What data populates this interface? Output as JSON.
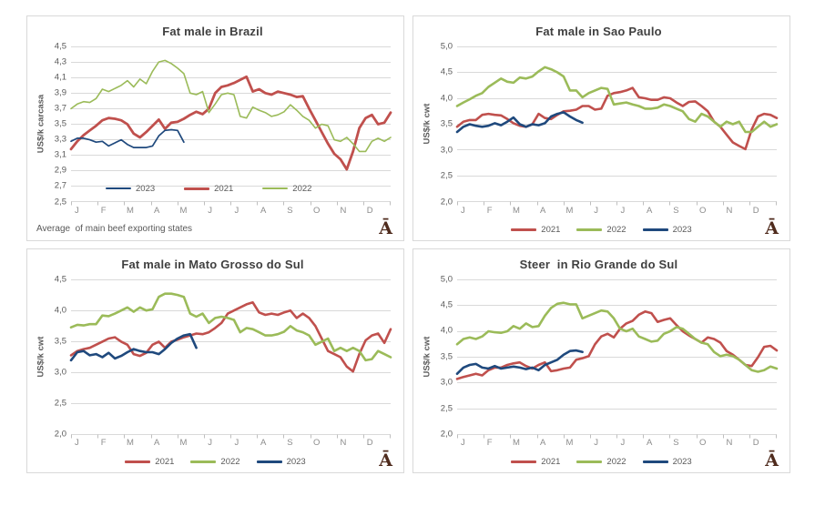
{
  "logo": "Ā",
  "palette": {
    "grid": "#d9d9d9",
    "axis": "#bfbfbf",
    "red_2021": "#c0504d",
    "green_2022": "#9bbb59",
    "blue_2023": "#1f497d",
    "title_text": "#404040",
    "axis_text": "#595959",
    "month_text": "#8c8c8c",
    "logo_brown": "#4f2b1d",
    "panel_border": "#d9d9d9"
  },
  "chart_data": [
    {
      "type": "line",
      "title": "Fat male in Brazil",
      "ylabel": "US$/k carcasa",
      "ylim": [
        2.5,
        4.5
      ],
      "grid": true,
      "y_ticks": [
        "4,5",
        "4,3",
        "4,1",
        "3,9",
        "3,7",
        "3,5",
        "3,3",
        "3,1",
        "2,9",
        "2,7",
        "2,5"
      ],
      "x_labels": [
        "J",
        "F",
        "M",
        "A",
        "M",
        "J",
        "J",
        "A",
        "S",
        "O",
        "N",
        "D"
      ],
      "footnote": "Average  of main beef exporting states",
      "legend_position": "inside-bottom-left",
      "legend_order": [
        2,
        0,
        1
      ],
      "series": [
        {
          "name": "2021",
          "color": "#c0504d",
          "stroke_width": 2.8,
          "values": [
            3.18,
            3.28,
            3.36,
            3.42,
            3.48,
            3.55,
            3.58,
            3.57,
            3.55,
            3.5,
            3.38,
            3.33,
            3.4,
            3.48,
            3.56,
            3.44,
            3.52,
            3.53,
            3.57,
            3.62,
            3.66,
            3.63,
            3.7,
            3.9,
            3.98,
            4.0,
            4.03,
            4.07,
            4.11,
            3.92,
            3.95,
            3.9,
            3.88,
            3.92,
            3.9,
            3.88,
            3.85,
            3.86,
            3.7,
            3.55,
            3.4,
            3.25,
            3.12,
            3.05,
            2.92,
            3.15,
            3.45,
            3.58,
            3.62,
            3.5,
            3.52,
            3.65
          ]
        },
        {
          "name": "2022",
          "color": "#9bbb59",
          "stroke_width": 1.6,
          "values": [
            3.7,
            3.76,
            3.79,
            3.78,
            3.83,
            3.95,
            3.92,
            3.96,
            4.0,
            4.06,
            3.98,
            4.08,
            4.02,
            4.18,
            4.3,
            4.32,
            4.28,
            4.22,
            4.15,
            3.9,
            3.88,
            3.92,
            3.65,
            3.76,
            3.88,
            3.9,
            3.88,
            3.6,
            3.58,
            3.72,
            3.68,
            3.65,
            3.6,
            3.62,
            3.66,
            3.75,
            3.68,
            3.6,
            3.55,
            3.45,
            3.5,
            3.48,
            3.3,
            3.28,
            3.33,
            3.25,
            3.15,
            3.15,
            3.28,
            3.32,
            3.28,
            3.33
          ]
        },
        {
          "name": "2023",
          "color": "#1f497d",
          "stroke_width": 1.7,
          "values": [
            3.28,
            3.32,
            3.32,
            3.3,
            3.27,
            3.28,
            3.22,
            3.26,
            3.3,
            3.24,
            3.2,
            3.2,
            3.2,
            3.22,
            3.35,
            3.42,
            3.43,
            3.42,
            3.27
          ]
        }
      ]
    },
    {
      "type": "line",
      "title": "Fat male in Sao Paulo",
      "ylabel": "US$/k cwt",
      "ylim": [
        2.0,
        5.0
      ],
      "grid": true,
      "y_ticks": [
        "5,0",
        "4,5",
        "4,0",
        "3,5",
        "3,0",
        "2,5",
        "2,0"
      ],
      "x_labels": [
        "J",
        "F",
        "M",
        "A",
        "M",
        "J",
        "J",
        "A",
        "S",
        "O",
        "N",
        "D"
      ],
      "legend_position": "bottom-center",
      "legend_order": [
        0,
        1,
        2
      ],
      "series": [
        {
          "name": "2021",
          "color": "#c0504d",
          "stroke_width": 2.6,
          "values": [
            3.45,
            3.55,
            3.58,
            3.58,
            3.68,
            3.7,
            3.68,
            3.67,
            3.6,
            3.52,
            3.47,
            3.45,
            3.5,
            3.7,
            3.62,
            3.6,
            3.68,
            3.75,
            3.76,
            3.78,
            3.85,
            3.85,
            3.78,
            3.8,
            4.05,
            4.1,
            4.12,
            4.15,
            4.2,
            4.02,
            4.0,
            3.97,
            3.97,
            4.02,
            4.0,
            3.92,
            3.85,
            3.93,
            3.94,
            3.85,
            3.75,
            3.55,
            3.45,
            3.3,
            3.15,
            3.08,
            3.02,
            3.4,
            3.65,
            3.7,
            3.68,
            3.62
          ]
        },
        {
          "name": "2022",
          "color": "#9bbb59",
          "stroke_width": 2.6,
          "values": [
            3.85,
            3.92,
            3.98,
            4.05,
            4.1,
            4.22,
            4.3,
            4.38,
            4.32,
            4.3,
            4.4,
            4.38,
            4.42,
            4.52,
            4.6,
            4.56,
            4.5,
            4.42,
            4.15,
            4.15,
            4.02,
            4.1,
            4.15,
            4.2,
            4.18,
            3.88,
            3.9,
            3.92,
            3.88,
            3.85,
            3.8,
            3.8,
            3.82,
            3.88,
            3.85,
            3.8,
            3.75,
            3.6,
            3.55,
            3.7,
            3.65,
            3.55,
            3.45,
            3.55,
            3.5,
            3.55,
            3.35,
            3.35,
            3.45,
            3.55,
            3.45,
            3.5
          ]
        },
        {
          "name": "2023",
          "color": "#1f497d",
          "stroke_width": 2.6,
          "values": [
            3.35,
            3.45,
            3.5,
            3.47,
            3.45,
            3.47,
            3.52,
            3.48,
            3.55,
            3.63,
            3.5,
            3.45,
            3.5,
            3.48,
            3.52,
            3.65,
            3.7,
            3.73,
            3.65,
            3.58,
            3.53
          ]
        }
      ]
    },
    {
      "type": "line",
      "title": "Fat male in Mato Grosso do Sul",
      "ylabel": "US$/k cwt",
      "ylim": [
        2.0,
        4.5
      ],
      "grid": true,
      "y_ticks": [
        "4,5",
        "4,0",
        "3,5",
        "3,0",
        "2,5",
        "2,0"
      ],
      "x_labels": [
        "J",
        "F",
        "M",
        "A",
        "M",
        "J",
        "J",
        "A",
        "S",
        "O",
        "N",
        "D"
      ],
      "legend_position": "bottom-center",
      "legend_order": [
        0,
        1,
        2
      ],
      "series": [
        {
          "name": "2021",
          "color": "#c0504d",
          "stroke_width": 2.6,
          "values": [
            3.28,
            3.35,
            3.38,
            3.4,
            3.45,
            3.5,
            3.55,
            3.57,
            3.5,
            3.45,
            3.3,
            3.27,
            3.32,
            3.45,
            3.5,
            3.4,
            3.5,
            3.53,
            3.57,
            3.6,
            3.63,
            3.62,
            3.65,
            3.72,
            3.8,
            3.95,
            4.0,
            4.05,
            4.1,
            4.13,
            3.97,
            3.93,
            3.95,
            3.93,
            3.97,
            4.0,
            3.88,
            3.95,
            3.88,
            3.75,
            3.55,
            3.35,
            3.3,
            3.25,
            3.1,
            3.02,
            3.3,
            3.52,
            3.6,
            3.63,
            3.48,
            3.7
          ]
        },
        {
          "name": "2022",
          "color": "#9bbb59",
          "stroke_width": 2.6,
          "values": [
            3.73,
            3.77,
            3.76,
            3.78,
            3.78,
            3.92,
            3.91,
            3.95,
            4.0,
            4.05,
            3.98,
            4.05,
            4.0,
            4.02,
            4.22,
            4.27,
            4.27,
            4.25,
            4.22,
            3.95,
            3.9,
            3.95,
            3.8,
            3.88,
            3.9,
            3.88,
            3.85,
            3.65,
            3.72,
            3.7,
            3.65,
            3.6,
            3.6,
            3.62,
            3.66,
            3.75,
            3.68,
            3.65,
            3.6,
            3.45,
            3.5,
            3.55,
            3.35,
            3.4,
            3.35,
            3.4,
            3.35,
            3.2,
            3.22,
            3.35,
            3.3,
            3.25
          ]
        },
        {
          "name": "2023",
          "color": "#1f497d",
          "stroke_width": 2.6,
          "values": [
            3.2,
            3.33,
            3.35,
            3.28,
            3.3,
            3.25,
            3.32,
            3.23,
            3.27,
            3.33,
            3.38,
            3.35,
            3.33,
            3.33,
            3.3,
            3.38,
            3.48,
            3.55,
            3.6,
            3.62,
            3.4
          ]
        }
      ]
    },
    {
      "type": "line",
      "title": "Steer  in Rio Grande do Sul",
      "ylabel": "US$/k cwt",
      "ylim": [
        2.0,
        5.0
      ],
      "grid": true,
      "y_ticks": [
        "5,0",
        "4,5",
        "4,0",
        "3,5",
        "3,0",
        "2,5",
        "2,0"
      ],
      "x_labels": [
        "J",
        "F",
        "M",
        "A",
        "M",
        "J",
        "J",
        "A",
        "S",
        "O",
        "N",
        "D"
      ],
      "legend_position": "bottom-center",
      "legend_order": [
        0,
        1,
        2
      ],
      "series": [
        {
          "name": "2021",
          "color": "#c0504d",
          "stroke_width": 2.6,
          "values": [
            3.08,
            3.12,
            3.15,
            3.18,
            3.15,
            3.25,
            3.3,
            3.3,
            3.35,
            3.38,
            3.4,
            3.33,
            3.28,
            3.35,
            3.4,
            3.23,
            3.25,
            3.28,
            3.3,
            3.45,
            3.48,
            3.52,
            3.75,
            3.9,
            3.95,
            3.88,
            4.05,
            4.15,
            4.2,
            4.32,
            4.38,
            4.35,
            4.18,
            4.22,
            4.25,
            4.12,
            4.0,
            3.92,
            3.85,
            3.78,
            3.88,
            3.85,
            3.78,
            3.62,
            3.55,
            3.45,
            3.35,
            3.33,
            3.5,
            3.7,
            3.72,
            3.63
          ]
        },
        {
          "name": "2022",
          "color": "#9bbb59",
          "stroke_width": 2.6,
          "values": [
            3.75,
            3.85,
            3.88,
            3.85,
            3.9,
            4.0,
            3.98,
            3.97,
            4.0,
            4.1,
            4.05,
            4.15,
            4.08,
            4.1,
            4.3,
            4.45,
            4.53,
            4.55,
            4.52,
            4.52,
            4.25,
            4.3,
            4.35,
            4.4,
            4.38,
            4.25,
            4.05,
            4.0,
            4.05,
            3.9,
            3.85,
            3.8,
            3.82,
            3.95,
            4.0,
            4.08,
            4.05,
            3.95,
            3.85,
            3.78,
            3.75,
            3.6,
            3.52,
            3.55,
            3.52,
            3.45,
            3.35,
            3.25,
            3.22,
            3.25,
            3.32,
            3.28
          ]
        },
        {
          "name": "2023",
          "color": "#1f497d",
          "stroke_width": 2.6,
          "values": [
            3.18,
            3.3,
            3.35,
            3.37,
            3.3,
            3.28,
            3.33,
            3.28,
            3.3,
            3.32,
            3.3,
            3.27,
            3.3,
            3.25,
            3.35,
            3.4,
            3.45,
            3.55,
            3.62,
            3.63,
            3.6
          ]
        }
      ]
    }
  ]
}
